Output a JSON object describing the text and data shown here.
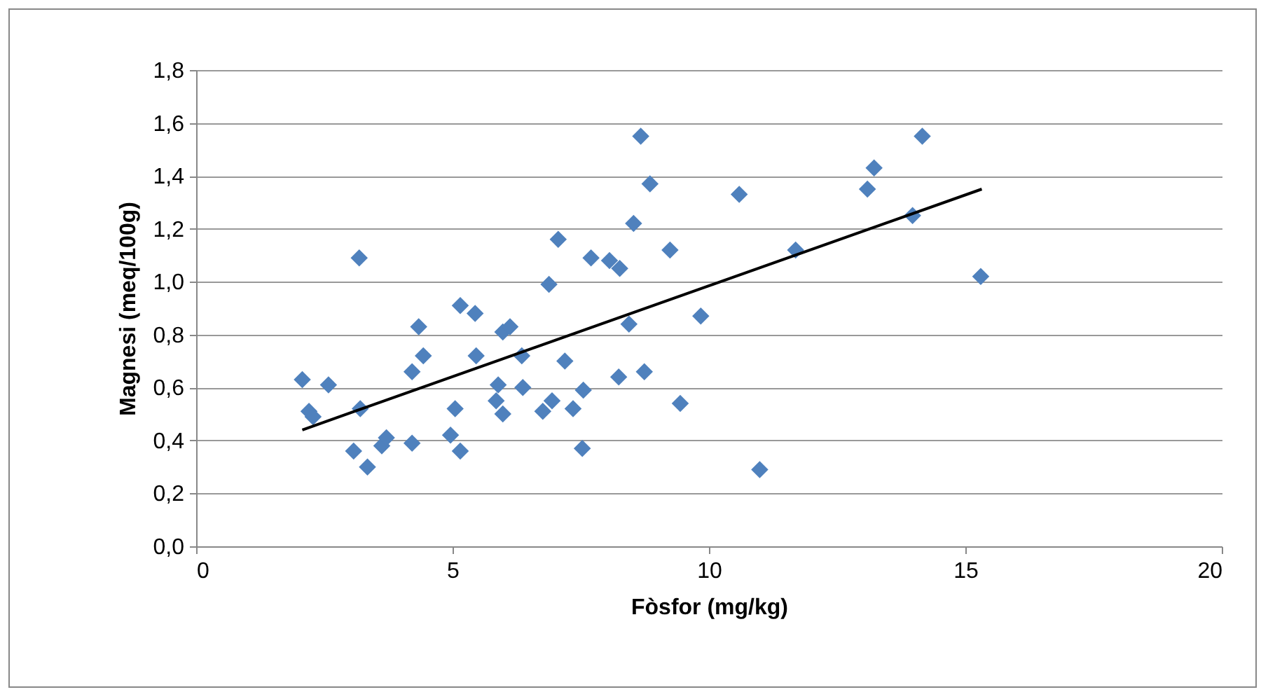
{
  "chart_data": {
    "type": "scatter",
    "xlabel": "Fòsfor (mg/kg)",
    "ylabel": "Magnesi (meq/100g)",
    "xlim": [
      0,
      20
    ],
    "xticks": [
      0,
      5,
      10,
      15,
      20
    ],
    "ylim": [
      0,
      1.8
    ],
    "yticks": [
      {
        "value": 0,
        "label": "0,0"
      },
      {
        "value": 0.2,
        "label": "0,2"
      },
      {
        "value": 0.4,
        "label": "0,4"
      },
      {
        "value": 0.6,
        "label": "0,6"
      },
      {
        "value": 0.8,
        "label": "0,8"
      },
      {
        "value": 1.0,
        "label": "1,0"
      },
      {
        "value": 1.2,
        "label": "1,2"
      },
      {
        "value": 1.4,
        "label": "1,4"
      },
      {
        "value": 1.6,
        "label": "1,6"
      },
      {
        "value": 1.8,
        "label": "1,8"
      }
    ],
    "grid": "y",
    "marker": "diamond",
    "series": [
      {
        "color": "#4f81bd",
        "x": [
          2.07,
          2.58,
          2.2,
          2.28,
          3.2,
          3.07,
          3.34,
          3.62,
          3.71,
          4.21,
          4.21,
          4.43,
          4.34,
          5.05,
          4.96,
          5.15,
          5.15,
          5.44,
          5.46,
          5.89,
          5.85,
          5.98,
          5.98,
          6.12,
          6.37,
          6.35,
          6.88,
          6.76,
          6.94,
          7.19,
          7.35,
          7.55,
          7.53,
          8.24,
          8.44,
          8.74,
          9.44,
          9.84,
          3.18,
          7.06,
          7.7,
          8.06,
          8.26,
          8.53,
          8.85,
          8.67,
          9.24,
          10.59,
          11.69,
          13.22,
          13.09,
          14.16,
          13.97,
          15.3,
          10.99
        ],
        "values": [
          0.63,
          0.61,
          0.51,
          0.49,
          0.52,
          0.36,
          0.3,
          0.38,
          0.41,
          0.39,
          0.66,
          0.72,
          0.83,
          0.52,
          0.42,
          0.36,
          0.91,
          0.88,
          0.72,
          0.61,
          0.55,
          0.5,
          0.81,
          0.83,
          0.6,
          0.72,
          0.99,
          0.51,
          0.55,
          0.7,
          0.52,
          0.59,
          0.37,
          0.64,
          0.84,
          0.66,
          0.54,
          0.87,
          1.09,
          1.16,
          1.09,
          1.08,
          1.05,
          1.22,
          1.37,
          1.55,
          1.12,
          1.33,
          1.12,
          1.43,
          1.35,
          1.55,
          1.25,
          1.02,
          0.29
        ]
      },
      {
        "type": "line",
        "marker": "none",
        "color": "#000000",
        "x": [
          2.07,
          15.32
        ],
        "values": [
          0.44,
          1.35
        ]
      }
    ]
  }
}
